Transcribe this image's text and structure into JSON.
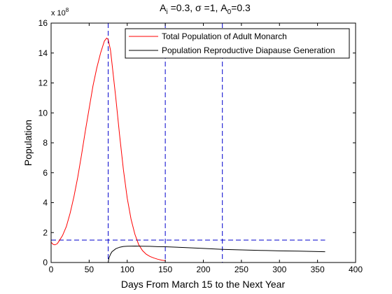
{
  "chart_data": {
    "type": "line",
    "title": {
      "parts": [
        {
          "text": "A",
          "sub": "i"
        },
        {
          "text": " =0.3, σ =1, A",
          "sub": "0"
        },
        {
          "text": "=0.3",
          "sub": ""
        }
      ]
    },
    "xlabel": "Days From March 15 to the Next Year",
    "ylabel": "Population",
    "y_exponent_label": {
      "base": "x 10",
      "exp": "8"
    },
    "xlim": [
      0,
      400
    ],
    "ylim": [
      0,
      16
    ],
    "x_ticks": [
      0,
      50,
      100,
      150,
      200,
      250,
      300,
      350,
      400
    ],
    "y_ticks": [
      0,
      2,
      4,
      6,
      8,
      10,
      12,
      14,
      16
    ],
    "legend_position": "top-right",
    "series": [
      {
        "name": "Total Population of Adult Monarch",
        "color": "#ff0000",
        "points": [
          [
            0,
            1.35
          ],
          [
            3,
            1.2
          ],
          [
            5,
            1.18
          ],
          [
            8,
            1.25
          ],
          [
            10,
            1.4
          ],
          [
            15,
            1.8
          ],
          [
            20,
            2.4
          ],
          [
            25,
            3.3
          ],
          [
            30,
            4.4
          ],
          [
            35,
            5.7
          ],
          [
            40,
            7.2
          ],
          [
            45,
            8.8
          ],
          [
            50,
            10.3
          ],
          [
            55,
            11.8
          ],
          [
            60,
            13.0
          ],
          [
            65,
            14.0
          ],
          [
            70,
            14.8
          ],
          [
            73,
            15.0
          ],
          [
            75,
            14.9
          ],
          [
            78,
            14.2
          ],
          [
            80,
            13.3
          ],
          [
            85,
            11.0
          ],
          [
            90,
            8.5
          ],
          [
            95,
            6.2
          ],
          [
            100,
            4.3
          ],
          [
            105,
            2.9
          ],
          [
            110,
            1.9
          ],
          [
            115,
            1.2
          ],
          [
            120,
            0.8
          ],
          [
            125,
            0.55
          ],
          [
            130,
            0.4
          ],
          [
            135,
            0.3
          ],
          [
            140,
            0.22
          ],
          [
            145,
            0.16
          ],
          [
            150,
            0.12
          ]
        ]
      },
      {
        "name": "Population Reproductive Diapause Generation",
        "color": "#000000",
        "points": [
          [
            75,
            0
          ],
          [
            76,
            0.3
          ],
          [
            78,
            0.55
          ],
          [
            80,
            0.72
          ],
          [
            85,
            0.92
          ],
          [
            90,
            1.02
          ],
          [
            95,
            1.07
          ],
          [
            100,
            1.09
          ],
          [
            110,
            1.1
          ],
          [
            120,
            1.09
          ],
          [
            130,
            1.08
          ],
          [
            140,
            1.06
          ],
          [
            150,
            1.05
          ],
          [
            175,
            1.0
          ],
          [
            200,
            0.94
          ],
          [
            225,
            0.88
          ],
          [
            250,
            0.84
          ],
          [
            275,
            0.81
          ],
          [
            300,
            0.78
          ],
          [
            325,
            0.76
          ],
          [
            350,
            0.73
          ],
          [
            360,
            0.72
          ]
        ]
      }
    ],
    "reference_lines": [
      {
        "orientation": "vertical",
        "x": 75,
        "color": "#0000cc",
        "style": "dashed"
      },
      {
        "orientation": "vertical",
        "x": 150,
        "color": "#0000cc",
        "style": "dashed"
      },
      {
        "orientation": "vertical",
        "x": 225,
        "color": "#0000cc",
        "style": "dashed"
      },
      {
        "orientation": "horizontal",
        "y": 1.5,
        "x_range": [
          0,
          360
        ],
        "color": "#0000cc",
        "style": "dashed"
      }
    ],
    "grid": false
  }
}
